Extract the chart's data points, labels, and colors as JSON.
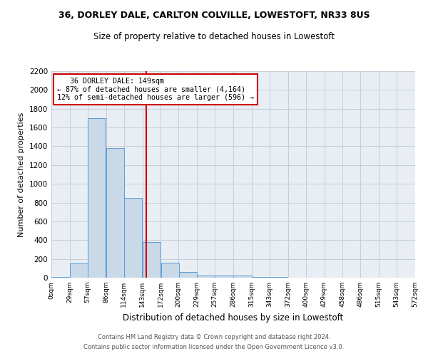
{
  "title1": "36, DORLEY DALE, CARLTON COLVILLE, LOWESTOFT, NR33 8US",
  "title2": "Size of property relative to detached houses in Lowestoft",
  "xlabel": "Distribution of detached houses by size in Lowestoft",
  "ylabel": "Number of detached properties",
  "property_size": 149,
  "bin_edges": [
    0,
    29,
    57,
    86,
    114,
    143,
    172,
    200,
    229,
    257,
    286,
    315,
    343,
    372,
    400,
    429,
    458,
    486,
    515,
    543,
    572
  ],
  "bar_heights": [
    10,
    150,
    1700,
    1380,
    850,
    380,
    160,
    60,
    25,
    25,
    25,
    5,
    5,
    0,
    0,
    0,
    0,
    0,
    0,
    0
  ],
  "bar_color": "#c9d9e8",
  "bar_edge_color": "#5b9bd5",
  "vline_color": "#cc0000",
  "vline_x": 149,
  "annotation_line1": "   36 DORLEY DALE: 149sqm",
  "annotation_line2": "← 87% of detached houses are smaller (4,164)",
  "annotation_line3": "12% of semi-detached houses are larger (596) →",
  "annotation_box_color": "white",
  "annotation_box_edge": "#cc0000",
  "ylim": [
    0,
    2200
  ],
  "yticks": [
    0,
    200,
    400,
    600,
    800,
    1000,
    1200,
    1400,
    1600,
    1800,
    2000,
    2200
  ],
  "grid_color": "#c5cfd9",
  "background_color": "#e8eef4",
  "footer1": "Contains HM Land Registry data © Crown copyright and database right 2024.",
  "footer2": "Contains public sector information licensed under the Open Government Licence v3.0."
}
